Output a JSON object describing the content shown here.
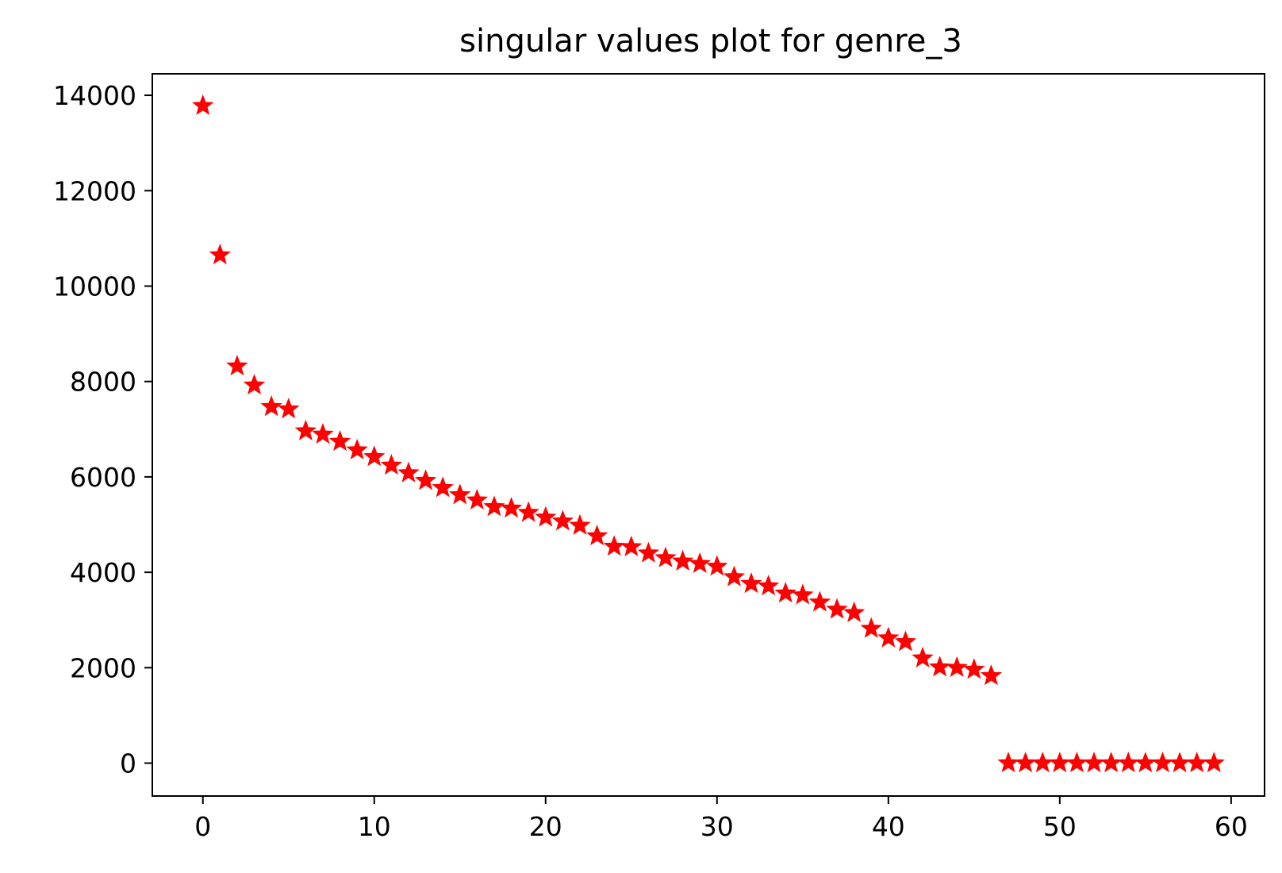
{
  "chart_data": {
    "type": "scatter",
    "title": "singular values plot for genre_3",
    "xlabel": "",
    "ylabel": "",
    "xlim": [
      -2.95,
      61.95
    ],
    "ylim": [
      -690,
      14450
    ],
    "xticks": [
      0,
      10,
      20,
      30,
      40,
      50,
      60
    ],
    "yticks": [
      0,
      2000,
      4000,
      6000,
      8000,
      10000,
      12000,
      14000
    ],
    "grid": false,
    "legend": "none",
    "marker": "star",
    "color": "#ff0000",
    "x": [
      0,
      1,
      2,
      3,
      4,
      5,
      6,
      7,
      8,
      9,
      10,
      11,
      12,
      13,
      14,
      15,
      16,
      17,
      18,
      19,
      20,
      21,
      22,
      23,
      24,
      25,
      26,
      27,
      28,
      29,
      30,
      31,
      32,
      33,
      34,
      35,
      36,
      37,
      38,
      39,
      40,
      41,
      42,
      43,
      44,
      45,
      46,
      47,
      48,
      49,
      50,
      51,
      52,
      53,
      54,
      55,
      56,
      57,
      58,
      59
    ],
    "values": [
      13780,
      10650,
      8320,
      7920,
      7470,
      7420,
      6960,
      6890,
      6740,
      6560,
      6420,
      6240,
      6080,
      5920,
      5770,
      5620,
      5510,
      5370,
      5340,
      5250,
      5150,
      5070,
      4980,
      4760,
      4540,
      4530,
      4400,
      4300,
      4230,
      4180,
      4120,
      3900,
      3760,
      3710,
      3560,
      3520,
      3370,
      3220,
      3150,
      2820,
      2620,
      2540,
      2200,
      2010,
      2000,
      1960,
      1830,
      0,
      0,
      0,
      0,
      0,
      0,
      0,
      0,
      0,
      0,
      0,
      0,
      0
    ]
  }
}
